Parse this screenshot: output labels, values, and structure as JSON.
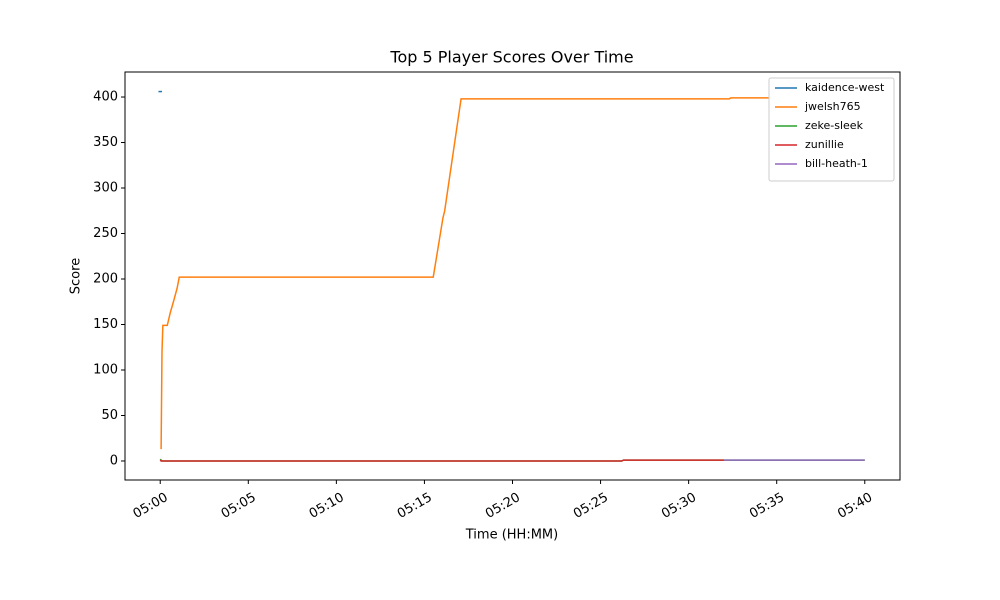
{
  "chart_data": {
    "type": "line",
    "title": "Top 5 Player Scores Over Time",
    "x_label": "Time (HH:MM)",
    "y_label": "Score",
    "xlim": [
      -2,
      42
    ],
    "ylim": [
      -20.9,
      427.5
    ],
    "xticks": [
      {
        "value": 0,
        "label": "05:00"
      },
      {
        "value": 5,
        "label": "05:05"
      },
      {
        "value": 10,
        "label": "05:10"
      },
      {
        "value": 15,
        "label": "05:15"
      },
      {
        "value": 20,
        "label": "05:20"
      },
      {
        "value": 25,
        "label": "05:25"
      },
      {
        "value": 30,
        "label": "05:30"
      },
      {
        "value": 35,
        "label": "05:35"
      },
      {
        "value": 40,
        "label": "05:40"
      }
    ],
    "yticks": [
      0,
      50,
      100,
      150,
      200,
      250,
      300,
      350,
      400
    ],
    "grid": false,
    "legend": "upper right",
    "series": [
      {
        "name": "kaidence-west",
        "color": "#1f77b4",
        "x": [
          -0.1,
          0.1
        ],
        "values": [
          406,
          406
        ]
      },
      {
        "name": "jwelsh765",
        "color": "#ff7f0e",
        "x": [
          0.05,
          0.1,
          0.15,
          0.4,
          0.57,
          0.75,
          0.96,
          1.08,
          15.5,
          16.05,
          16.15,
          17.08,
          32.3,
          32.4,
          40
        ],
        "values": [
          13,
          120,
          149,
          149,
          163,
          175,
          190,
          202,
          202,
          267,
          275,
          398,
          398,
          399,
          399
        ]
      },
      {
        "name": "zeke-sleek",
        "color": "#2ca02c",
        "x": [
          0,
          0.1,
          26.2,
          26.3,
          40
        ],
        "values": [
          2,
          0,
          0,
          1,
          1
        ]
      },
      {
        "name": "zunillie",
        "color": "#d62728",
        "x": [
          0,
          0.05,
          26.2,
          26.3,
          32
        ],
        "values": [
          1,
          0,
          0,
          1,
          1
        ]
      },
      {
        "name": "bill-heath-1",
        "color": "#9467bd",
        "x": [
          32,
          40
        ],
        "values": [
          1,
          1
        ]
      }
    ]
  }
}
